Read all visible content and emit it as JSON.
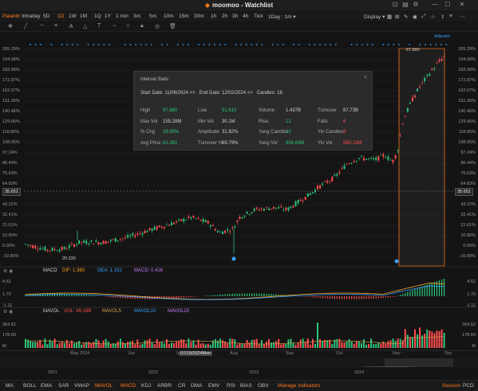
{
  "window": {
    "brand": "moomoo",
    "title": "moomoo - Watchlist",
    "minimize": "—",
    "maximize": "☐",
    "close": "✕"
  },
  "toolbar": {
    "ticker": "Palantir",
    "intervals": [
      "Intraday",
      "5D",
      "1D",
      "1W",
      "1M",
      "1Q",
      "1Y",
      "1 min",
      "3m",
      "5m",
      "10m",
      "15m",
      "30m",
      "1h",
      "2h",
      "3h",
      "4h",
      "Tick",
      "1Day : 1m ▾"
    ],
    "active_interval": "1D",
    "display_label": "Display ▾",
    "adjusted_label": "Adjuster"
  },
  "price_axis": {
    "left": [
      "205.29%",
      "194.68%",
      "183.68%",
      "172.87%",
      "162.07%",
      "151.26%",
      "140.46%",
      "129.66%",
      "118.85%",
      "108.05%",
      "97.24%",
      "86.44%",
      "75.63%",
      "64.83%",
      "54.02%",
      "43.22%",
      "32.41%",
      "21.61%",
      "10.80%",
      "0.00%",
      "-10.80%"
    ],
    "right": [
      "205.29%",
      "194.68%",
      "183.68%",
      "172.87%",
      "162.07%",
      "151.26%",
      "140.46%",
      "129.66%",
      "118.85%",
      "108.05%",
      "97.24%",
      "86.44%",
      "75.63%",
      "64.83%",
      "43.22%",
      "32.41%",
      "21.61%",
      "10.80%",
      "0.00%",
      "-10.80%"
    ],
    "current_price": "35.651",
    "low_marker": "20.330",
    "high_marker": "67.880"
  },
  "interval_stats": {
    "title": "Interval Stats",
    "close": "×",
    "start_date_label": "Start Date:",
    "start_date": "11/06/2024",
    "end_date_label": "End Date:",
    "end_date": "12/02/2024",
    "candles_label": "Candles:",
    "candles": "18",
    "rows": [
      [
        {
          "label": "High",
          "value": "67.880",
          "color": "#2ec47a"
        },
        {
          "label": "Low",
          "value": "51.610",
          "color": "#2ec47a"
        },
        {
          "label": "Volume",
          "value": "1.437B",
          "color": "#cfcfcf"
        },
        {
          "label": "Turnover",
          "value": "87.73B",
          "color": "#cfcfcf"
        }
      ],
      [
        {
          "label": "Max Vol",
          "value": "155.28M",
          "color": "#cfcfcf"
        },
        {
          "label": "Min Vol",
          "value": "30.1M",
          "color": "#cfcfcf"
        },
        {
          "label": "Rise:",
          "value": "12",
          "color": "#2ec47a"
        },
        {
          "label": "Falls",
          "value": "6",
          "color": "#ff4d4f"
        }
      ],
      [
        {
          "label": "% Chg",
          "value": "29.85%",
          "color": "#2ec47a"
        },
        {
          "label": "Amplitude",
          "value": "31.82%",
          "color": "#cfcfcf"
        },
        {
          "label": "Yang Candles",
          "value": "10",
          "color": "#2ec47a"
        },
        {
          "label": "Yin Candles",
          "value": "8",
          "color": "#ff4d4f"
        }
      ],
      [
        {
          "label": "Avg Price",
          "value": "61.061",
          "color": "#2ec47a"
        },
        {
          "label": "Turnover %",
          "value": "69.79%",
          "color": "#cfcfcf"
        },
        {
          "label": "Yang Vol",
          "value": "856.64M",
          "color": "#2ec47a"
        },
        {
          "label": "Yin Vol",
          "value": "580.19M",
          "color": "#ff4d4f"
        }
      ]
    ]
  },
  "macd": {
    "label": "MACD",
    "dif": "DIF: 1.360",
    "dea": "DEA: 1.152",
    "macd": "MACD: 0.416",
    "axis": [
      "4.52",
      "1.70",
      "-1.11"
    ],
    "axis_right": [
      "4.52",
      "1.70",
      "-1.11"
    ]
  },
  "mavol": {
    "label": "MAVOL",
    "vol": "VOL: 49.18B",
    "ma5": "MAVOL5",
    "ma10": "MAVOL10",
    "ma20": "MAVOL20",
    "axis": [
      "364.52",
      "178.69",
      "M"
    ],
    "axis_right": [
      "364.52",
      "178.69",
      "M"
    ]
  },
  "time_axis": {
    "labels": [
      "May 2024",
      "Jun",
      "Jul",
      "Aug",
      "Sep",
      "Oct",
      "Nov",
      "Dec"
    ],
    "crosshair_date": "07/15/2024Mon"
  },
  "navigator_years": [
    "2021",
    "2022",
    "2023",
    "2024"
  ],
  "indicators": {
    "items": [
      "MA",
      "BOLL",
      "EMA",
      "SAR",
      "VWAP",
      "MAVOL",
      "MACD",
      "KDJ",
      "ARBR",
      "CR",
      "DMA",
      "EMV",
      "RSI",
      "BIAS",
      "OBV"
    ],
    "active": [
      "MAVOL",
      "MACD"
    ],
    "manage": "Manage Indicators",
    "session": "Session",
    "pcd": "PCD"
  },
  "colors": {
    "up": "#2ec47a",
    "down": "#ff4d4f",
    "accent": "#ff7a1a",
    "dif": "#ff9f1a",
    "dea": "#3aa0ff",
    "macd": "#c77dff"
  }
}
